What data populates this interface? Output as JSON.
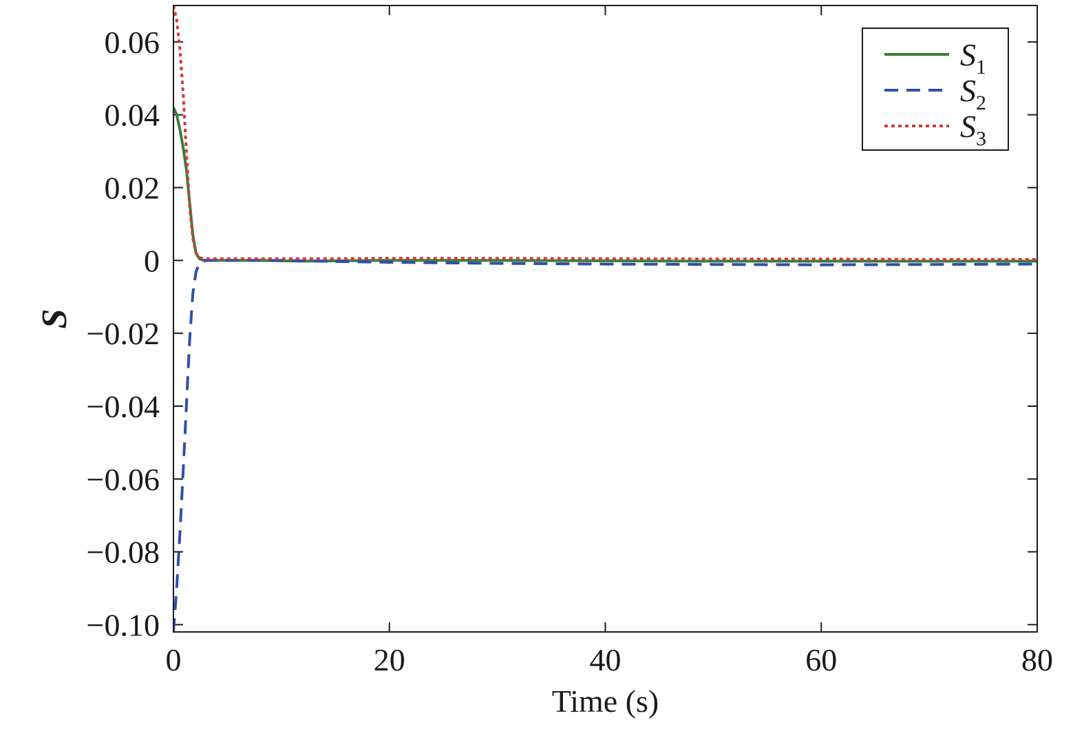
{
  "chart_data": {
    "type": "line",
    "title": "",
    "xlabel": "Time (s)",
    "ylabel": "S",
    "xlim": [
      0,
      80
    ],
    "ylim": [
      -0.102,
      0.07
    ],
    "xticks": [
      0,
      20,
      40,
      60,
      80
    ],
    "yticks": [
      0.06,
      0.04,
      0.02,
      0,
      -0.02,
      -0.04,
      -0.06,
      -0.08,
      -0.1
    ],
    "xtick_labels": [
      "0",
      "20",
      "40",
      "60",
      "80"
    ],
    "ytick_labels": [
      "0.06",
      "0.04",
      "0.02",
      "0",
      "−0.02",
      "−0.04",
      "−0.06",
      "−0.08",
      "−0.10"
    ],
    "grid": false,
    "legend_position": "top-right",
    "series": [
      {
        "name": "S",
        "subscript": "1",
        "style": "solid",
        "color": "#3a7d3a",
        "x": [
          0,
          0.3,
          0.6,
          0.9,
          1.2,
          1.5,
          1.8,
          2.1,
          2.4,
          2.7,
          3,
          4,
          6,
          8,
          10,
          12,
          15,
          20,
          30,
          40,
          50,
          60,
          70,
          80
        ],
        "y": [
          0.042,
          0.04,
          0.036,
          0.031,
          0.025,
          0.016,
          0.007,
          0.002,
          0.0005,
          0.0001,
          0,
          0,
          0,
          0,
          -0.0001,
          -0.0002,
          -0.0001,
          0,
          0,
          -0.0001,
          -0.0002,
          -0.0002,
          -0.0002,
          -0.0002
        ]
      },
      {
        "name": "S",
        "subscript": "2",
        "style": "dashed",
        "color": "#2f4fa8",
        "x": [
          0,
          0.3,
          0.6,
          0.9,
          1.2,
          1.5,
          1.8,
          2.1,
          2.4,
          2.7,
          3,
          4,
          6,
          8,
          10,
          15,
          20,
          30,
          40,
          50,
          60,
          70,
          80
        ],
        "y": [
          -0.102,
          -0.09,
          -0.075,
          -0.058,
          -0.04,
          -0.022,
          -0.009,
          -0.003,
          -0.001,
          -0.0003,
          0,
          0,
          0,
          0,
          0,
          -0.0003,
          -0.0005,
          -0.0008,
          -0.001,
          -0.0011,
          -0.0012,
          -0.0011,
          -0.001
        ]
      },
      {
        "name": "S",
        "subscript": "3",
        "style": "dotted",
        "color": "#d63a3a",
        "x": [
          0,
          0.3,
          0.6,
          0.9,
          1.2,
          1.5,
          1.8,
          2.1,
          2.4,
          2.7,
          3,
          4,
          6,
          8,
          10,
          15,
          20,
          30,
          40,
          50,
          60,
          70,
          80
        ],
        "y": [
          0.07,
          0.066,
          0.058,
          0.046,
          0.03,
          0.015,
          0.006,
          0.002,
          0.0008,
          0.0006,
          0.0005,
          0.0005,
          0.0005,
          0.0005,
          0.0005,
          0.0005,
          0.0006,
          0.0006,
          0.0005,
          0.0004,
          0.0004,
          0.0003,
          0.0003
        ]
      }
    ]
  }
}
